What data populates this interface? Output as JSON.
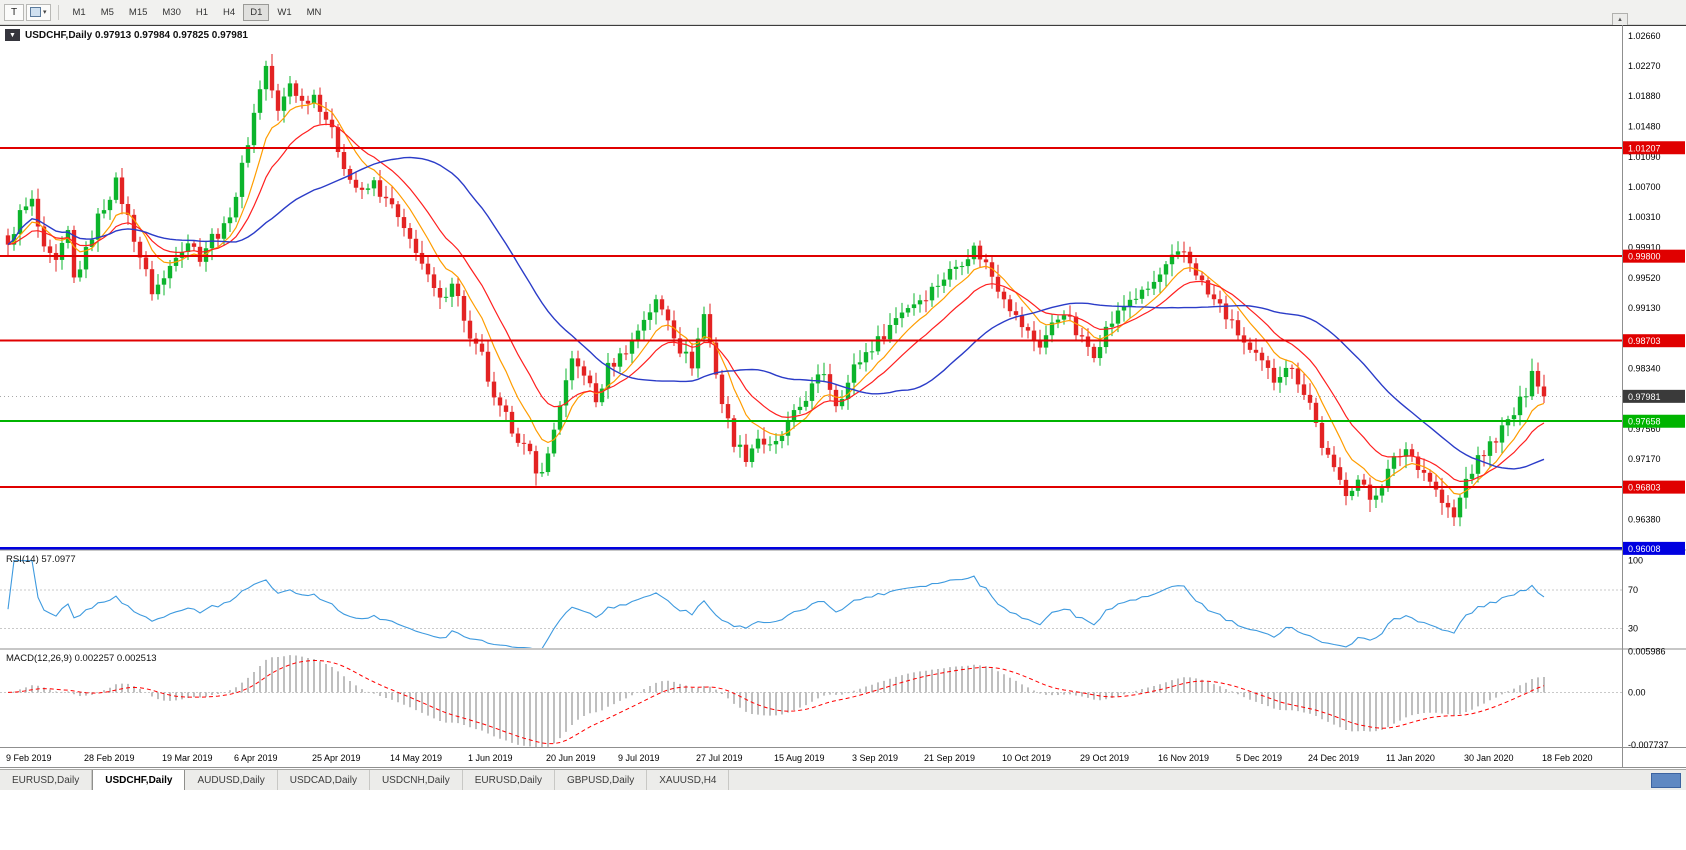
{
  "icons": {
    "one_click": "▼",
    "caret": "▾",
    "scroll_up": "▲"
  },
  "toolbar": {
    "text_tool_label": "T",
    "timeframes": [
      "M1",
      "M5",
      "M15",
      "M30",
      "H1",
      "H4",
      "D1",
      "W1",
      "MN"
    ],
    "active_timeframe": "D1"
  },
  "chart_header": {
    "title": "USDCHF,Daily 0.97913 0.97984 0.97825 0.97981"
  },
  "chart_data": {
    "type": "candlestick",
    "symbol": "USDCHF",
    "timeframe": "Daily",
    "ohlc_display": {
      "open": "0.97913",
      "high": "0.97984",
      "low": "0.97825",
      "close": "0.97981"
    },
    "bars_count": 257,
    "price_axis_range": {
      "max": 1.028,
      "min": 0.96
    },
    "y_ticks": [
      "1.02660",
      "1.02270",
      "1.01880",
      "1.01480",
      "1.01090",
      "1.00700",
      "1.00310",
      "0.99910",
      "0.99520",
      "0.99130",
      "0.98730",
      "0.98340",
      "0.97950",
      "0.97560",
      "0.97170",
      "0.96770",
      "0.96380"
    ],
    "x_labels": [
      {
        "label": "9 Feb 2019",
        "bar": 0
      },
      {
        "label": "28 Feb 2019",
        "bar": 13
      },
      {
        "label": "19 Mar 2019",
        "bar": 26
      },
      {
        "label": "6 Apr 2019",
        "bar": 38
      },
      {
        "label": "25 Apr 2019",
        "bar": 51
      },
      {
        "label": "14 May 2019",
        "bar": 64
      },
      {
        "label": "1 Jun 2019",
        "bar": 77
      },
      {
        "label": "20 Jun 2019",
        "bar": 90
      },
      {
        "label": "9 Jul 2019",
        "bar": 102
      },
      {
        "label": "27 Jul 2019",
        "bar": 115
      },
      {
        "label": "15 Aug 2019",
        "bar": 128
      },
      {
        "label": "3 Sep 2019",
        "bar": 141
      },
      {
        "label": "21 Sep 2019",
        "bar": 153
      },
      {
        "label": "10 Oct 2019",
        "bar": 166
      },
      {
        "label": "29 Oct 2019",
        "bar": 179
      },
      {
        "label": "16 Nov 2019",
        "bar": 192
      },
      {
        "label": "5 Dec 2019",
        "bar": 205
      },
      {
        "label": "24 Dec 2019",
        "bar": 217
      },
      {
        "label": "11 Jan 2020",
        "bar": 230
      },
      {
        "label": "30 Jan 2020",
        "bar": 243
      },
      {
        "label": "18 Feb 2020",
        "bar": 256
      }
    ],
    "close_waypoints": [
      [
        0,
        0.9995
      ],
      [
        2,
        1.0035
      ],
      [
        4,
        1.005
      ],
      [
        6,
        0.9985
      ],
      [
        8,
        0.997
      ],
      [
        10,
        1.001
      ],
      [
        11,
        0.995
      ],
      [
        13,
        0.9985
      ],
      [
        15,
        1.003
      ],
      [
        17,
        1.006
      ],
      [
        18,
        1.0075
      ],
      [
        20,
        1.003
      ],
      [
        22,
        0.998
      ],
      [
        24,
        0.9935
      ],
      [
        26,
        0.995
      ],
      [
        28,
        0.9985
      ],
      [
        30,
        1.0
      ],
      [
        32,
        0.998
      ],
      [
        34,
        1.0005
      ],
      [
        36,
        1.0015
      ],
      [
        38,
        1.006
      ],
      [
        40,
        1.013
      ],
      [
        42,
        1.02
      ],
      [
        43,
        1.0226
      ],
      [
        45,
        1.0165
      ],
      [
        47,
        1.0205
      ],
      [
        49,
        1.018
      ],
      [
        51,
        1.019
      ],
      [
        53,
        1.016
      ],
      [
        55,
        1.012
      ],
      [
        57,
        1.008
      ],
      [
        59,
        1.006
      ],
      [
        61,
        1.0075
      ],
      [
        63,
        1.005
      ],
      [
        64,
        1.0045
      ],
      [
        66,
        1.001
      ],
      [
        68,
        0.999
      ],
      [
        70,
        0.995
      ],
      [
        72,
        0.992
      ],
      [
        74,
        0.995
      ],
      [
        76,
        0.99
      ],
      [
        77,
        0.987
      ],
      [
        79,
        0.985
      ],
      [
        81,
        0.979
      ],
      [
        83,
        0.977
      ],
      [
        85,
        0.9745
      ],
      [
        87,
        0.972
      ],
      [
        88,
        0.9695
      ],
      [
        90,
        0.972
      ],
      [
        92,
        0.979
      ],
      [
        94,
        0.984
      ],
      [
        96,
        0.983
      ],
      [
        98,
        0.979
      ],
      [
        100,
        0.9835
      ],
      [
        102,
        0.985
      ],
      [
        104,
        0.987
      ],
      [
        106,
        0.99
      ],
      [
        108,
        0.992
      ],
      [
        110,
        0.99
      ],
      [
        112,
        0.986
      ],
      [
        114,
        0.984
      ],
      [
        116,
        0.9905
      ],
      [
        118,
        0.983
      ],
      [
        119,
        0.979
      ],
      [
        121,
        0.974
      ],
      [
        123,
        0.972
      ],
      [
        125,
        0.9745
      ],
      [
        127,
        0.973
      ],
      [
        128,
        0.9735
      ],
      [
        130,
        0.976
      ],
      [
        132,
        0.9785
      ],
      [
        134,
        0.981
      ],
      [
        136,
        0.983
      ],
      [
        138,
        0.979
      ],
      [
        140,
        0.9815
      ],
      [
        141,
        0.9835
      ],
      [
        143,
        0.9855
      ],
      [
        145,
        0.987
      ],
      [
        147,
        0.989
      ],
      [
        149,
        0.991
      ],
      [
        151,
        0.992
      ],
      [
        153,
        0.993
      ],
      [
        155,
        0.9945
      ],
      [
        157,
        0.996
      ],
      [
        159,
        0.9975
      ],
      [
        161,
        0.999
      ],
      [
        163,
        0.997
      ],
      [
        165,
        0.994
      ],
      [
        166,
        0.993
      ],
      [
        168,
        0.99
      ],
      [
        170,
        0.988
      ],
      [
        172,
        0.9865
      ],
      [
        174,
        0.989
      ],
      [
        176,
        0.991
      ],
      [
        178,
        0.988
      ],
      [
        179,
        0.987
      ],
      [
        181,
        0.9855
      ],
      [
        183,
        0.9885
      ],
      [
        185,
        0.9905
      ],
      [
        187,
        0.9925
      ],
      [
        189,
        0.993
      ],
      [
        191,
        0.9945
      ],
      [
        192,
        0.9955
      ],
      [
        194,
        0.9975
      ],
      [
        196,
        0.9985
      ],
      [
        198,
        0.996
      ],
      [
        200,
        0.993
      ],
      [
        202,
        0.9915
      ],
      [
        204,
        0.989
      ],
      [
        205,
        0.988
      ],
      [
        207,
        0.9855
      ],
      [
        209,
        0.984
      ],
      [
        211,
        0.982
      ],
      [
        213,
        0.984
      ],
      [
        215,
        0.982
      ],
      [
        217,
        0.979
      ],
      [
        219,
        0.9735
      ],
      [
        221,
        0.97
      ],
      [
        223,
        0.9675
      ],
      [
        225,
        0.969
      ],
      [
        227,
        0.9665
      ],
      [
        229,
        0.9685
      ],
      [
        231,
        0.9715
      ],
      [
        233,
        0.973
      ],
      [
        235,
        0.971
      ],
      [
        237,
        0.969
      ],
      [
        239,
        0.966
      ],
      [
        241,
        0.964
      ],
      [
        242,
        0.9665
      ],
      [
        243,
        0.969
      ],
      [
        245,
        0.9715
      ],
      [
        247,
        0.9735
      ],
      [
        249,
        0.9755
      ],
      [
        251,
        0.9775
      ],
      [
        253,
        0.9805
      ],
      [
        254,
        0.9838
      ],
      [
        255,
        0.9812
      ],
      [
        256,
        0.97981
      ]
    ],
    "candle_colors": {
      "up": "#0cb42c",
      "down": "#e32323"
    },
    "moving_averages": [
      {
        "name": "fast-ma",
        "type": "ema",
        "period": 8,
        "color": "#ff9d00"
      },
      {
        "name": "mid-ma",
        "type": "ema",
        "period": 16,
        "color": "#ff2020"
      },
      {
        "name": "slow-ma",
        "type": "sma",
        "period": 34,
        "color": "#2b3cc8"
      }
    ],
    "horizontal_lines": [
      {
        "value": 1.01207,
        "label": "1.01207",
        "color": "#e00000",
        "width": 2
      },
      {
        "value": 0.998,
        "label": "0.99800",
        "color": "#e00000",
        "width": 2
      },
      {
        "value": 0.98703,
        "label": "0.98703",
        "color": "#e00000",
        "width": 2
      },
      {
        "value": 0.97658,
        "label": "0.97658",
        "color": "#00b400",
        "width": 2
      },
      {
        "value": 0.96803,
        "label": "0.96803",
        "color": "#e00000",
        "width": 2
      },
      {
        "value": 0.96008,
        "label": "0.96008",
        "color": "#0000e0",
        "width": 3
      }
    ],
    "current_price": {
      "value": 0.97981,
      "label": "0.97981",
      "badge_color": "#3a3a3a",
      "line_color": "#a8a8a8"
    },
    "indicators": [
      {
        "name": "RSI",
        "label": "RSI(14) 57.0977",
        "value": "57.0977",
        "levels": [
          100,
          70,
          30
        ],
        "color": "#3e9adf",
        "range": {
          "max": 110,
          "min": 10
        }
      },
      {
        "name": "MACD",
        "label": "MACD(12,26,9) 0.002257 0.002513",
        "values": [
          "0.002257",
          "0.002513"
        ],
        "ticks": [
          {
            "label": "0.005986",
            "value": 0.005986
          },
          {
            "label": "0.00",
            "value": 0
          },
          {
            "label": "-0.007737",
            "value": -0.007737
          }
        ],
        "range": {
          "max": 0.0062,
          "min": -0.008
        },
        "histogram_color": "#7f7f7f",
        "signal_color": "#ff0000"
      }
    ]
  },
  "tabs": {
    "items": [
      {
        "label": "EURUSD,Daily"
      },
      {
        "label": "USDCHF,Daily"
      },
      {
        "label": "AUDUSD,Daily"
      },
      {
        "label": "USDCAD,Daily"
      },
      {
        "label": "USDCNH,Daily"
      },
      {
        "label": "EURUSD,Daily"
      },
      {
        "label": "GBPUSD,Daily"
      },
      {
        "label": "XAUUSD,H4"
      }
    ],
    "active_index": 1
  }
}
